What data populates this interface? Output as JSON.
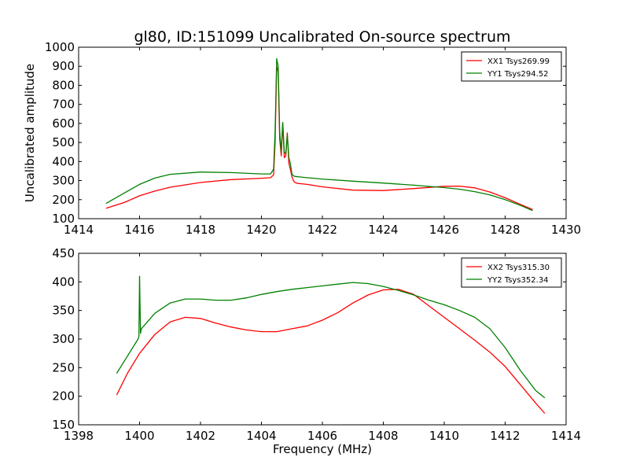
{
  "title": "gl80, ID:151099 Uncalibrated On-source spectrum",
  "chart_data": [
    {
      "type": "line",
      "title": "gl80, ID:151099 Uncalibrated On-source spectrum",
      "xlabel": "",
      "ylabel": "Uncalibrated amplitude",
      "xlim": [
        1414,
        1430
      ],
      "ylim": [
        100,
        1000
      ],
      "xticks": [
        "1414",
        "1416",
        "1418",
        "1420",
        "1422",
        "1424",
        "1426",
        "1428",
        "1430"
      ],
      "yticks": [
        "100",
        "200",
        "300",
        "400",
        "500",
        "600",
        "700",
        "800",
        "900",
        "1000"
      ],
      "legend_position": "top-right",
      "series": [
        {
          "name": "XX1 Tsys269.99",
          "color": "#ff0000",
          "x": [
            1414.9,
            1415.5,
            1416,
            1416.5,
            1417,
            1418,
            1419,
            1420,
            1420.3,
            1420.4,
            1420.45,
            1420.5,
            1420.55,
            1420.6,
            1420.65,
            1420.7,
            1420.75,
            1420.8,
            1420.85,
            1420.9,
            1420.95,
            1421.0,
            1421.05,
            1421.1,
            1421.2,
            1421.5,
            1422,
            1423,
            1424,
            1425,
            1426,
            1426.5,
            1427,
            1427.5,
            1428,
            1428.5,
            1428.9
          ],
          "values": [
            155,
            185,
            220,
            245,
            265,
            290,
            305,
            312,
            315,
            330,
            500,
            900,
            870,
            520,
            430,
            600,
            420,
            430,
            550,
            390,
            360,
            320,
            300,
            290,
            285,
            280,
            267,
            250,
            248,
            258,
            270,
            271,
            262,
            240,
            210,
            175,
            148
          ]
        },
        {
          "name": "YY1 Tsys294.52",
          "color": "#008000",
          "x": [
            1414.9,
            1415.5,
            1416,
            1416.5,
            1417,
            1418,
            1419,
            1420,
            1420.3,
            1420.4,
            1420.45,
            1420.5,
            1420.55,
            1420.6,
            1420.65,
            1420.7,
            1420.75,
            1420.8,
            1420.85,
            1420.9,
            1420.95,
            1421.0,
            1421.05,
            1421.1,
            1421.2,
            1421.5,
            1422,
            1423,
            1424,
            1425,
            1426,
            1426.5,
            1427,
            1427.5,
            1428,
            1428.5,
            1428.9
          ],
          "values": [
            180,
            235,
            280,
            313,
            333,
            345,
            342,
            335,
            335,
            360,
            560,
            940,
            900,
            560,
            450,
            605,
            450,
            440,
            540,
            420,
            390,
            335,
            325,
            322,
            320,
            315,
            308,
            297,
            287,
            276,
            263,
            255,
            242,
            225,
            200,
            170,
            142
          ]
        }
      ]
    },
    {
      "type": "line",
      "title": "",
      "xlabel": "Frequency (MHz)",
      "ylabel": "",
      "xlim": [
        1398,
        1414
      ],
      "ylim": [
        150,
        450
      ],
      "xticks": [
        "1398",
        "1400",
        "1402",
        "1404",
        "1406",
        "1408",
        "1410",
        "1412",
        "1414"
      ],
      "yticks": [
        "150",
        "200",
        "250",
        "300",
        "350",
        "400",
        "450"
      ],
      "legend_position": "top-right",
      "series": [
        {
          "name": "XX2 Tsys315.30",
          "color": "#ff0000",
          "x": [
            1399.25,
            1399.6,
            1400,
            1400.5,
            1401,
            1401.5,
            1402,
            1402.5,
            1403,
            1403.5,
            1404,
            1404.5,
            1405,
            1405.5,
            1406,
            1406.5,
            1407,
            1407.5,
            1408,
            1408.5,
            1409,
            1409.5,
            1410,
            1410.5,
            1411,
            1411.5,
            1412,
            1412.5,
            1413,
            1413.3
          ],
          "values": [
            202,
            240,
            275,
            308,
            330,
            338,
            336,
            328,
            321,
            316,
            313,
            313,
            318,
            323,
            333,
            346,
            363,
            377,
            386,
            387,
            378,
            358,
            338,
            318,
            298,
            277,
            252,
            220,
            188,
            170
          ]
        },
        {
          "name": "YY2 Tsys352.34",
          "color": "#008000",
          "x": [
            1399.25,
            1399.6,
            1399.95,
            1399.98,
            1400.0,
            1400.03,
            1400.06,
            1400.5,
            1401,
            1401.5,
            1402,
            1402.5,
            1403,
            1403.5,
            1404,
            1404.5,
            1405,
            1405.5,
            1406,
            1406.5,
            1407,
            1407.5,
            1408,
            1408.5,
            1409,
            1409.5,
            1410,
            1410.5,
            1411,
            1411.5,
            1412,
            1412.5,
            1413,
            1413.3
          ],
          "values": [
            240,
            270,
            300,
            305,
            410,
            310,
            318,
            345,
            363,
            370,
            370,
            368,
            368,
            372,
            378,
            383,
            387,
            390,
            393,
            396,
            399,
            397,
            392,
            385,
            377,
            368,
            360,
            350,
            338,
            318,
            285,
            245,
            210,
            197
          ]
        }
      ]
    }
  ]
}
